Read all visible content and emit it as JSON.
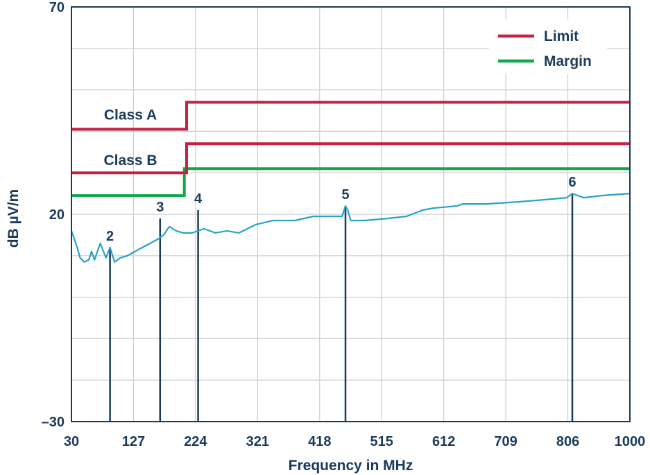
{
  "chart_data": {
    "type": "line",
    "xlabel": "Frequency in MHz",
    "ylabel": "dB µV/m",
    "xlim": [
      30,
      1000
    ],
    "ylim": [
      -30,
      70
    ],
    "x_tick_labels": [
      "30",
      "127",
      "224",
      "321",
      "418",
      "515",
      "612",
      "709",
      "806",
      "1000"
    ],
    "y_tick_labels": [
      "70",
      "20",
      "–30"
    ],
    "grid": true,
    "legend_position": "top-right",
    "colors": {
      "limit": "#c8203f",
      "margin": "#10a84c",
      "emission": "#2aa1c8",
      "marker": "#1b3a5c",
      "grid": "#c9ced6",
      "axis": "#1b3a5c"
    },
    "series": [
      {
        "name": "Limit",
        "segments": [
          {
            "label": "Class A",
            "x": [
              30,
              230,
              230,
              1000
            ],
            "y": [
              40.5,
              40.5,
              47,
              47
            ]
          },
          {
            "label": "Class B",
            "x": [
              30,
              230,
              230,
              1000
            ],
            "y": [
              30,
              30,
              37,
              37
            ]
          }
        ]
      },
      {
        "name": "Margin",
        "x": [
          30,
          226,
          226,
          1000
        ],
        "y": [
          24.5,
          24.5,
          31,
          31
        ]
      },
      {
        "name": "",
        "x": [
          30,
          40,
          45,
          52,
          60,
          65,
          70,
          80,
          90,
          97,
          105,
          115,
          127,
          140,
          160,
          180,
          190,
          200,
          212,
          224,
          240,
          250,
          260,
          280,
          300,
          321,
          350,
          380,
          418,
          450,
          500,
          506,
          510,
          515,
          540,
          580,
          612,
          640,
          660,
          700,
          709,
          750,
          806,
          850,
          890,
          900,
          920,
          950,
          1000
        ],
        "y": [
          16,
          12,
          9.5,
          8.5,
          9,
          11,
          9,
          13,
          9.5,
          12,
          8.5,
          9.5,
          10,
          11,
          12.5,
          14,
          15,
          17,
          16,
          15.5,
          15.5,
          16,
          16.5,
          15.5,
          16,
          15.5,
          17.5,
          18.5,
          18.5,
          19.5,
          19.5,
          22,
          21,
          18.5,
          18.5,
          19,
          19.5,
          21,
          21.5,
          22,
          22.5,
          22.5,
          23,
          23.5,
          24,
          25,
          24,
          24.5,
          25
        ]
      }
    ],
    "markers": [
      {
        "label": "2",
        "x": 97,
        "y": 12
      },
      {
        "label": "3",
        "x": 184,
        "y": 19
      },
      {
        "label": "4",
        "x": 250,
        "y": 21
      },
      {
        "label": "5",
        "x": 506,
        "y": 22
      },
      {
        "label": "6",
        "x": 900,
        "y": 25
      }
    ],
    "annotations": [
      "Class A",
      "Class B"
    ]
  }
}
